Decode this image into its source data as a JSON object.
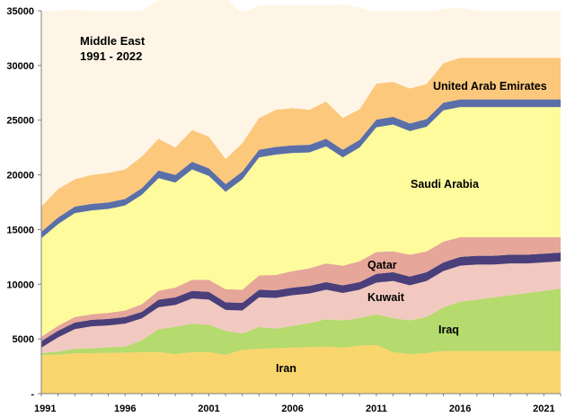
{
  "chart_data": {
    "type": "area",
    "stacked": true,
    "title_lines": [
      "Middle East",
      "1991 - 2022"
    ],
    "xlabel": "",
    "ylabel": "",
    "x": [
      1991,
      1992,
      1993,
      1994,
      1995,
      1996,
      1997,
      1998,
      1999,
      2000,
      2001,
      2002,
      2003,
      2004,
      2005,
      2006,
      2007,
      2008,
      2009,
      2010,
      2011,
      2012,
      2013,
      2014,
      2015,
      2016,
      2017,
      2018,
      2019,
      2020,
      2021,
      2022
    ],
    "xticks": [
      1991,
      1996,
      2001,
      2006,
      2011,
      2016,
      2021
    ],
    "xtick_labels": [
      "1991",
      "1996",
      "2001",
      "2006",
      "2011",
      "2016",
      "2021"
    ],
    "ylim": [
      0,
      35000
    ],
    "yticks": [
      0,
      5000,
      10000,
      15000,
      20000,
      25000,
      30000,
      35000
    ],
    "ytick_labels": [
      "-",
      "5000",
      "10000",
      "15000",
      "20000",
      "25000",
      "30000",
      "35000"
    ],
    "grid": false,
    "series": [
      {
        "name": "Iran",
        "color": "#F9D56E",
        "values": [
          3500,
          3550,
          3700,
          3700,
          3730,
          3750,
          3780,
          3800,
          3600,
          3800,
          3800,
          3550,
          4000,
          4100,
          4150,
          4200,
          4250,
          4300,
          4200,
          4400,
          4450,
          3800,
          3600,
          3700,
          3900,
          3900,
          3900,
          3900,
          3900,
          3900,
          3900,
          3900
        ]
      },
      {
        "name": "",
        "color": "#B5DA6E",
        "values": [
          200,
          300,
          400,
          450,
          500,
          550,
          1100,
          2100,
          2500,
          2600,
          2500,
          2200,
          1500,
          2000,
          1800,
          2000,
          2200,
          2500,
          2500,
          2500,
          2800,
          3100,
          3100,
          3300,
          4000,
          4500,
          4700,
          4900,
          5100,
          5300,
          5500,
          5700
        ]
      },
      {
        "name": "Kuwait",
        "color": "#F2C9C0",
        "values": [
          500,
          1300,
          1800,
          2000,
          2000,
          2100,
          2000,
          2000,
          2000,
          2300,
          2300,
          1900,
          2100,
          2700,
          2800,
          2800,
          2700,
          2700,
          2500,
          2600,
          2900,
          3400,
          3200,
          3300,
          3300,
          3300,
          3200,
          3000,
          2900,
          2700,
          2600,
          2500
        ]
      },
      {
        "name": "",
        "color": "#4A3F7A",
        "values": [
          600,
          600,
          600,
          600,
          600,
          600,
          600,
          700,
          700,
          700,
          700,
          700,
          700,
          700,
          700,
          700,
          700,
          700,
          700,
          700,
          800,
          800,
          800,
          800,
          800,
          800,
          800,
          800,
          800,
          800,
          800,
          800
        ]
      },
      {
        "name": "Qatar",
        "color": "#E6A69A",
        "values": [
          400,
          450,
          500,
          500,
          550,
          600,
          700,
          800,
          900,
          1000,
          1100,
          1200,
          1200,
          1300,
          1400,
          1500,
          1600,
          1700,
          1800,
          1900,
          2000,
          1900,
          2000,
          1900,
          1900,
          1800,
          1700,
          1700,
          1600,
          1600,
          1500,
          1400
        ]
      },
      {
        "name": "Saudi Arabia",
        "color": "#FDFB9C",
        "values": [
          9000,
          9300,
          9500,
          9500,
          9500,
          9600,
          10000,
          10300,
          9600,
          10100,
          9500,
          8900,
          10100,
          10800,
          11000,
          10800,
          10600,
          10700,
          9900,
          10400,
          11400,
          11600,
          11300,
          11400,
          12000,
          11900,
          11900,
          11900,
          11900,
          11900,
          11900,
          11900
        ]
      },
      {
        "name": "",
        "color": "#5A6FA8",
        "values": [
          600,
          600,
          600,
          600,
          600,
          600,
          600,
          700,
          700,
          700,
          700,
          700,
          700,
          700,
          700,
          700,
          700,
          700,
          700,
          700,
          700,
          700,
          700,
          700,
          700,
          700,
          700,
          700,
          700,
          700,
          700,
          700
        ]
      },
      {
        "name": "United Arab Emirates",
        "color": "#FCC87C",
        "values": [
          2300,
          2600,
          2500,
          2650,
          2700,
          2700,
          2900,
          2900,
          2500,
          2900,
          2900,
          2300,
          2600,
          2900,
          3400,
          3400,
          3200,
          3400,
          2900,
          2800,
          3300,
          3200,
          3200,
          3200,
          3600,
          3800,
          3800,
          3800,
          3800,
          3800,
          3800,
          3800
        ]
      },
      {
        "name": "",
        "color": "#FFF5E6",
        "values": [
          17900,
          16300,
          15500,
          15000,
          14820,
          14300,
          13320,
          12700,
          13500,
          12400,
          12500,
          14750,
          11800,
          10300,
          9550,
          9400,
          9550,
          8800,
          10400,
          9300,
          6450,
          6000,
          7100,
          6400,
          5000,
          4600,
          4300,
          4100,
          3900,
          3700,
          3500,
          3300
        ]
      }
    ]
  },
  "labels": {
    "iran": "Iran",
    "iraq": "Iraq",
    "kuwait": "Kuwait",
    "qatar": "Qatar",
    "saudi": "Saudi Arabia",
    "uae": "United Arab Emirates"
  },
  "title": {
    "line1": "Middle East",
    "line2": "1991 - 2022"
  }
}
